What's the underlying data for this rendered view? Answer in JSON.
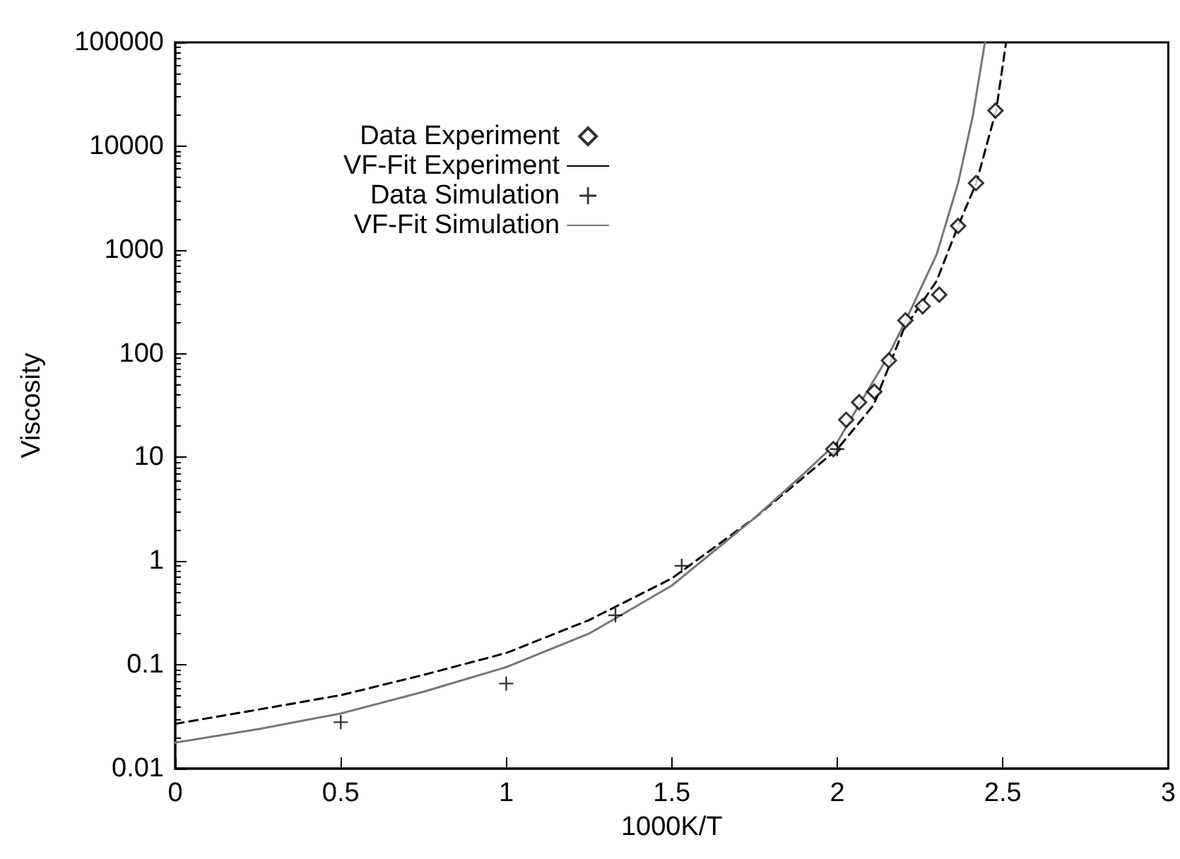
{
  "chart_data": {
    "type": "scatter",
    "xlabel": "1000K/T",
    "ylabel": "Viscosity",
    "log": "y",
    "xlim": [
      0,
      3
    ],
    "xticks": [
      0,
      0.5,
      1,
      1.5,
      2,
      2.5,
      3
    ],
    "ylim": [
      0.01,
      100000
    ],
    "yticks": [
      0.01,
      0.1,
      1,
      10,
      100,
      1000,
      10000,
      100000
    ],
    "grid": false,
    "legend": "top",
    "series": [
      {
        "name": "Data Experiment",
        "marker": "diamond",
        "color": "#000000",
        "x": [
          1.988,
          2.027,
          2.066,
          2.112,
          2.156,
          2.206,
          2.258,
          2.308,
          2.365,
          2.419,
          2.478
        ],
        "values": [
          12,
          23,
          34,
          43,
          86,
          209,
          286,
          370,
          1700,
          4400,
          22000
        ]
      },
      {
        "name": "VF-Fit Experiment",
        "type": "line",
        "marker": "none",
        "line_style": "dashed",
        "color": "#000000",
        "x": [
          0,
          0.25,
          0.5,
          0.75,
          1,
          1.25,
          1.5,
          1.75,
          1.9,
          2.0,
          2.11,
          2.2,
          2.3,
          2.365,
          2.42,
          2.46,
          2.48,
          2.51
        ],
        "values": [
          0.027,
          0.037,
          0.051,
          0.08,
          0.13,
          0.27,
          0.68,
          2.6,
          6.5,
          12,
          32,
          170,
          500,
          1700,
          4400,
          13000,
          22000,
          100000
        ]
      },
      {
        "name": "Data Simulation",
        "marker": "cross",
        "color": "#000000",
        "x": [
          0.5,
          1.0,
          1.33,
          1.53,
          2.0
        ],
        "values": [
          0.028,
          0.066,
          0.3,
          0.9,
          12
        ]
      },
      {
        "name": "VF-Fit Simulation",
        "type": "line",
        "marker": "none",
        "line_style": "solid",
        "color": "#777777",
        "x": [
          0,
          0.25,
          0.5,
          0.75,
          1,
          1.25,
          1.5,
          1.75,
          1.9,
          2.0,
          2.066,
          2.15,
          2.207,
          2.3,
          2.365,
          2.41,
          2.446
        ],
        "values": [
          0.0178,
          0.024,
          0.034,
          0.055,
          0.095,
          0.2,
          0.58,
          2.6,
          7,
          14,
          32,
          90,
          209,
          900,
          4400,
          20000,
          100000
        ]
      }
    ]
  }
}
